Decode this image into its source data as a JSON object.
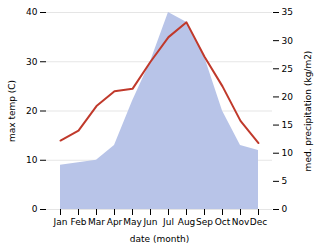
{
  "chart_data": {
    "type": "line",
    "categories": [
      "Jan",
      "Feb",
      "Mar",
      "Apr",
      "May",
      "Jun",
      "Jul",
      "Aug",
      "Sep",
      "Oct",
      "Nov",
      "Dec"
    ],
    "series": [
      {
        "type": "area",
        "color": "#b8c4e8",
        "values": [
          9,
          9.5,
          10,
          13,
          22,
          30,
          40,
          38,
          31,
          20,
          13,
          12
        ]
      },
      {
        "type": "line",
        "color": "#c0392b",
        "values": [
          14,
          16,
          21,
          24,
          24.5,
          30,
          35,
          38,
          31,
          25,
          18,
          13.5
        ]
      }
    ],
    "xlabel": "date (month)",
    "ylabel": "max temp (C)",
    "y2label": "med. precipitation (kg/m2)",
    "ylim": [
      0,
      40
    ],
    "yticks": [
      0,
      10,
      20,
      30,
      40
    ],
    "y2lim": [
      0,
      35
    ],
    "y2ticks": [
      0,
      5,
      10,
      15,
      20,
      25,
      30,
      35
    ],
    "grid": true
  }
}
